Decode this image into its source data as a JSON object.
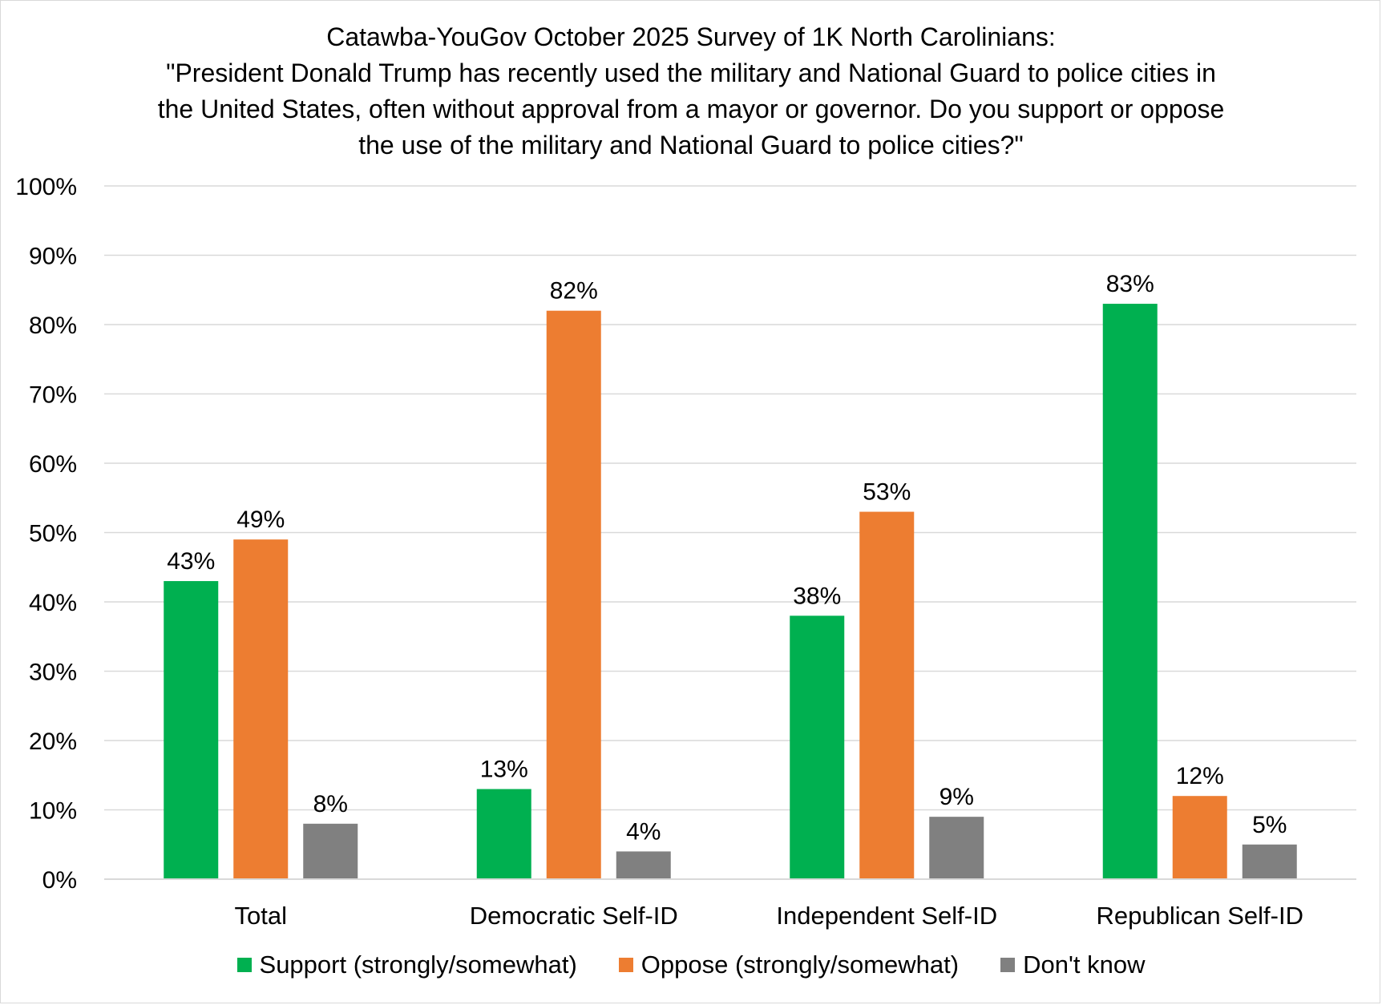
{
  "chart_data": {
    "type": "bar",
    "title_lines": [
      "Catawba-YouGov October 2025 Survey of 1K North Carolinians:",
      "\"President Donald Trump has recently used the military and National Guard to police cities in",
      "the United States, often without approval from a mayor or governor. Do you support or oppose",
      "the use of the military and National Guard to police cities?\""
    ],
    "categories": [
      "Total",
      "Democratic Self-ID",
      "Independent Self-ID",
      "Republican Self-ID"
    ],
    "series": [
      {
        "name": "Support (strongly/somewhat)",
        "color": "#00b050",
        "values": [
          43,
          13,
          38,
          83
        ],
        "labels": [
          "43%",
          "13%",
          "38%",
          "83%"
        ]
      },
      {
        "name": "Oppose (strongly/somewhat)",
        "color": "#ed7d31",
        "values": [
          49,
          82,
          53,
          12
        ],
        "labels": [
          "49%",
          "82%",
          "53%",
          "12%"
        ]
      },
      {
        "name": "Don't know",
        "color": "#808080",
        "values": [
          8,
          4,
          9,
          5
        ],
        "labels": [
          "8%",
          "4%",
          "9%",
          "5%"
        ]
      }
    ],
    "y_ticks": [
      "0%",
      "10%",
      "20%",
      "30%",
      "40%",
      "50%",
      "60%",
      "70%",
      "80%",
      "90%",
      "100%"
    ],
    "ylim": [
      0,
      100
    ],
    "grid": true,
    "legend_position": "bottom"
  }
}
